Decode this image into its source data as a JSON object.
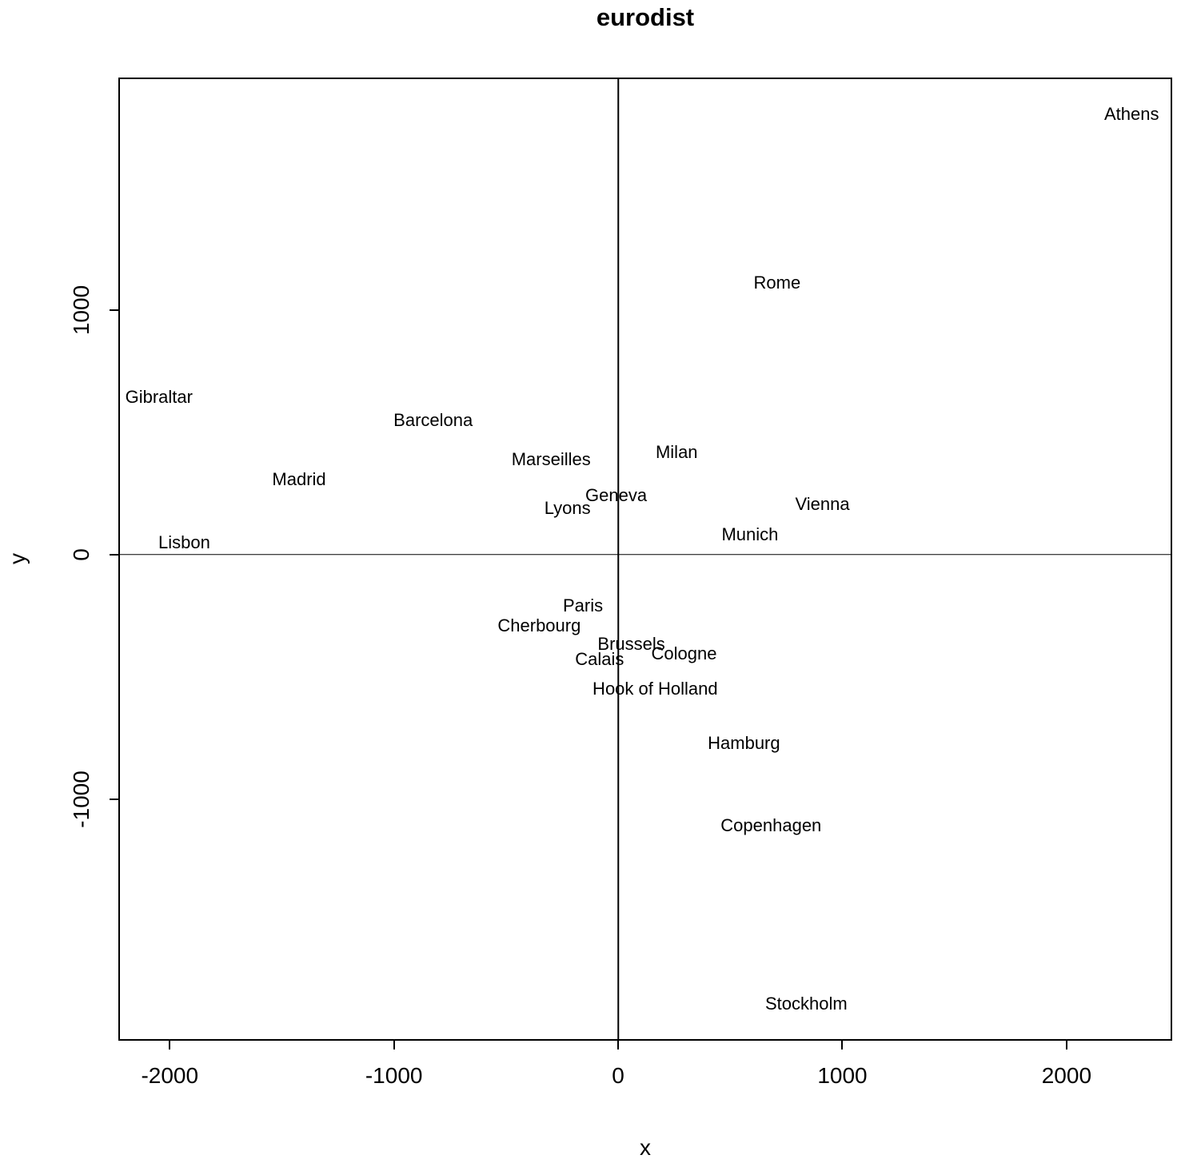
{
  "chart_data": {
    "type": "scatter",
    "title": "eurodist",
    "xlabel": "x",
    "ylabel": "y",
    "xlim": [
      -2222,
      2464
    ],
    "ylim": [
      -1982,
      1944
    ],
    "xticks": [
      -2000,
      -1000,
      0,
      1000,
      2000
    ],
    "yticks": [
      -1000,
      0,
      1000
    ],
    "grid": false,
    "legend": false,
    "reference_lines": {
      "vertical_x": 0,
      "horizontal_y": 0
    },
    "points": [
      {
        "label": "Athens",
        "x": 2290,
        "y": 1799
      },
      {
        "label": "Barcelona",
        "x": -825,
        "y": 547
      },
      {
        "label": "Brussels",
        "x": 59,
        "y": -367
      },
      {
        "label": "Calais",
        "x": -83,
        "y": -430
      },
      {
        "label": "Cherbourg",
        "x": -352,
        "y": -291
      },
      {
        "label": "Cologne",
        "x": 294,
        "y": -405
      },
      {
        "label": "Copenhagen",
        "x": 682,
        "y": -1109
      },
      {
        "label": "Geneva",
        "x": -9,
        "y": 240
      },
      {
        "label": "Gibraltar",
        "x": -2048,
        "y": 642
      },
      {
        "label": "Hamburg",
        "x": 561,
        "y": -773
      },
      {
        "label": "Hook of Holland",
        "x": 165,
        "y": -549
      },
      {
        "label": "Lisbon",
        "x": -1935,
        "y": 49
      },
      {
        "label": "Lyons",
        "x": -226,
        "y": 187
      },
      {
        "label": "Madrid",
        "x": -1423,
        "y": 306
      },
      {
        "label": "Marseilles",
        "x": -299,
        "y": 389
      },
      {
        "label": "Milan",
        "x": 261,
        "y": 417
      },
      {
        "label": "Munich",
        "x": 588,
        "y": 81
      },
      {
        "label": "Paris",
        "x": -157,
        "y": -211
      },
      {
        "label": "Rome",
        "x": 709,
        "y": 1109
      },
      {
        "label": "Stockholm",
        "x": 839,
        "y": -1837
      },
      {
        "label": "Vienna",
        "x": 911,
        "y": 206
      }
    ]
  }
}
